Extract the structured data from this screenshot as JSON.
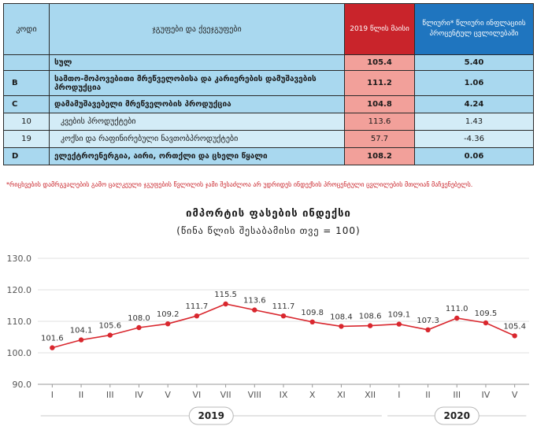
{
  "table": {
    "headers": {
      "code": "კოდი",
      "name": "ჯგუფები და ქვეჯგუფები",
      "year": "2019 წლის მაისი",
      "change": "წლიური* წლიური ინფლაციის პროცენტულ ცვლილებაში"
    },
    "rows": [
      {
        "code": "",
        "name": "სულ",
        "v1": "105.4",
        "v2": "5.40"
      },
      {
        "code": "B",
        "name": "სამთო-მოპოვებითი მრეწველობისა და კარიერების დამუშავების პროდუქცია",
        "v1": "111.2",
        "v2": "1.06"
      },
      {
        "code": "C",
        "name": "დამამუშავებელი მრეწველობის პროდუქცია",
        "v1": "104.8",
        "v2": "4.24"
      },
      {
        "code": "10",
        "name": "კვების პროდუქტები",
        "v1": "113.6",
        "v2": "1.43"
      },
      {
        "code": "19",
        "name": "კოქსი და რაფინირებული ნავთობპროდუქტები",
        "v1": "57.7",
        "v2": "-4.36"
      },
      {
        "code": "D",
        "name": "ელექტროენერგია, აირი, ორთქლი და ცხელი წყალი",
        "v1": "108.2",
        "v2": "0.06"
      }
    ]
  },
  "note": "*რიცხვების დამრგვალების გამო ცალკეული ჯგუფების წვლილის ჯამი შესაძლოა არ უდრიდეს ინდექსის პროცენტული ცვლილების მთლიან მაჩვენებელს.",
  "chart_data": {
    "type": "line",
    "title": "იმპორტის ფასების ინდექსი",
    "subtitle": "(წინა წლის შესაბამისი თვე = 100)",
    "categories": [
      "I",
      "II",
      "III",
      "IV",
      "V",
      "VI",
      "VII",
      "VIII",
      "IX",
      "X",
      "XI",
      "XII",
      "I",
      "II",
      "III",
      "IV",
      "V"
    ],
    "values": [
      101.6,
      104.1,
      105.6,
      108.0,
      109.2,
      111.7,
      115.5,
      113.6,
      111.7,
      109.8,
      108.4,
      108.6,
      109.1,
      107.3,
      111.0,
      109.5,
      105.4
    ],
    "ylim": [
      90,
      130
    ],
    "yticks": [
      "90.0",
      "100.0",
      "110.0",
      "120.0",
      "130.0"
    ],
    "year_groups": [
      {
        "label": "2019",
        "start": 0,
        "end": 11
      },
      {
        "label": "2020",
        "start": 12,
        "end": 16
      }
    ],
    "line_color": "#d9272e",
    "grid": true
  }
}
